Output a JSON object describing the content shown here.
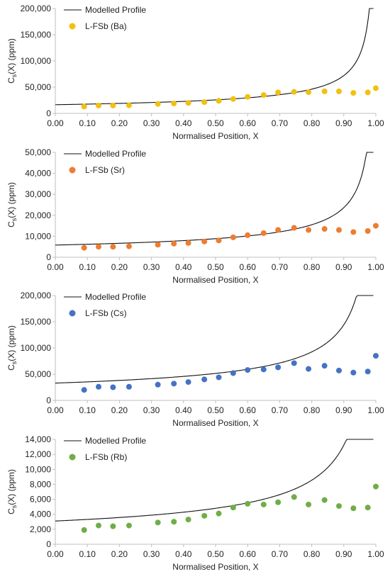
{
  "chart_data": [
    {
      "type": "scatter",
      "xlabel": "Normalised Position, X",
      "ylabel_main": "C",
      "ylabel_sub": "s",
      "ylabel_rest": "(X) (ppm)",
      "xlim": [
        0,
        1
      ],
      "ylim": [
        0,
        200000
      ],
      "xticks": [
        "0.00",
        "0.10",
        "0.20",
        "0.30",
        "0.40",
        "0.50",
        "0.60",
        "0.70",
        "0.80",
        "0.90",
        "1.00"
      ],
      "yticks": [
        "0",
        "50,000",
        "100,000",
        "150,000",
        "200,000"
      ],
      "legend": [
        "Modelled Profile",
        "L-FSb (Ba)"
      ],
      "color": "#f2c010",
      "C0": 16500,
      "k": 0.36,
      "points": {
        "x": [
          0.09,
          0.135,
          0.18,
          0.23,
          0.32,
          0.37,
          0.415,
          0.465,
          0.51,
          0.555,
          0.6,
          0.65,
          0.695,
          0.745,
          0.79,
          0.84,
          0.885,
          0.93,
          0.975,
          1.0
        ],
        "y": [
          13000,
          15000,
          15000,
          15500,
          18000,
          19000,
          20000,
          21500,
          24000,
          27500,
          31500,
          35000,
          40000,
          41000,
          40500,
          42000,
          42000,
          39000,
          40000,
          48000
        ]
      }
    },
    {
      "type": "scatter",
      "xlabel": "Normalised Position, X",
      "ylabel_main": "C",
      "ylabel_sub": "s",
      "ylabel_rest": "(X) (ppm)",
      "xlim": [
        0,
        1
      ],
      "ylim": [
        0,
        50000
      ],
      "xticks": [
        "0.00",
        "0.10",
        "0.20",
        "0.30",
        "0.40",
        "0.50",
        "0.60",
        "0.70",
        "0.80",
        "0.90",
        "1.00"
      ],
      "yticks": [
        "0",
        "10,000",
        "20,000",
        "30,000",
        "40,000",
        "50,000"
      ],
      "legend": [
        "Modelled Profile",
        "L-FSb (Sr)"
      ],
      "color": "#ed7d31",
      "C0": 5800,
      "k": 0.39,
      "points": {
        "x": [
          0.09,
          0.135,
          0.18,
          0.23,
          0.32,
          0.37,
          0.415,
          0.465,
          0.51,
          0.555,
          0.6,
          0.65,
          0.695,
          0.745,
          0.79,
          0.84,
          0.885,
          0.93,
          0.975,
          1.0
        ],
        "y": [
          4500,
          5000,
          5000,
          5200,
          6000,
          6500,
          6800,
          7500,
          8000,
          9500,
          10500,
          11500,
          13000,
          14000,
          13000,
          13500,
          13000,
          12000,
          12500,
          15000
        ]
      }
    },
    {
      "type": "scatter",
      "xlabel": "Normalised Position, X",
      "ylabel_main": "C",
      "ylabel_sub": "s",
      "ylabel_rest": "(X) (ppm)",
      "xlim": [
        0,
        1
      ],
      "ylim": [
        0,
        200000
      ],
      "xticks": [
        "0.00",
        "0.10",
        "0.20",
        "0.30",
        "0.40",
        "0.50",
        "0.60",
        "0.70",
        "0.80",
        "0.90",
        "1.00"
      ],
      "yticks": [
        "0",
        "50,000",
        "100,000",
        "150,000",
        "200,000"
      ],
      "legend": [
        "Modelled Profile",
        "L-FSb (Cs)"
      ],
      "color": "#4472c4",
      "C0": 33000,
      "k": 0.36,
      "points": {
        "x": [
          0.09,
          0.135,
          0.18,
          0.23,
          0.32,
          0.37,
          0.415,
          0.465,
          0.51,
          0.555,
          0.6,
          0.65,
          0.695,
          0.745,
          0.79,
          0.84,
          0.885,
          0.93,
          0.975,
          1.0
        ],
        "y": [
          20000,
          26000,
          25000,
          26000,
          30000,
          32000,
          35000,
          40000,
          44000,
          52000,
          58000,
          59000,
          63000,
          71000,
          60000,
          66000,
          57000,
          53000,
          55000,
          85000
        ]
      }
    },
    {
      "type": "scatter",
      "xlabel": "Normalised Position, X",
      "ylabel_main": "C",
      "ylabel_sub": "s",
      "ylabel_rest": "(X) (ppm)",
      "xlim": [
        0,
        1
      ],
      "ylim": [
        0,
        14000
      ],
      "xticks": [
        "0.00",
        "0.10",
        "0.20",
        "0.30",
        "0.40",
        "0.50",
        "0.60",
        "0.70",
        "0.80",
        "0.90",
        "1.00"
      ],
      "yticks": [
        "0",
        "2,000",
        "4,000",
        "6,000",
        "8,000",
        "10,000",
        "12,000",
        "14,000"
      ],
      "legend": [
        "Modelled Profile",
        "L-FSb (Rb)"
      ],
      "color": "#70ad47",
      "C0": 3100,
      "k": 0.37,
      "points": {
        "x": [
          0.09,
          0.135,
          0.18,
          0.23,
          0.32,
          0.37,
          0.415,
          0.465,
          0.51,
          0.555,
          0.6,
          0.65,
          0.695,
          0.745,
          0.79,
          0.84,
          0.885,
          0.93,
          0.975,
          1.0
        ],
        "y": [
          1900,
          2500,
          2400,
          2500,
          2900,
          3000,
          3300,
          3800,
          4100,
          4900,
          5400,
          5300,
          5600,
          6300,
          5300,
          5900,
          5100,
          4800,
          4900,
          7700
        ]
      }
    }
  ]
}
